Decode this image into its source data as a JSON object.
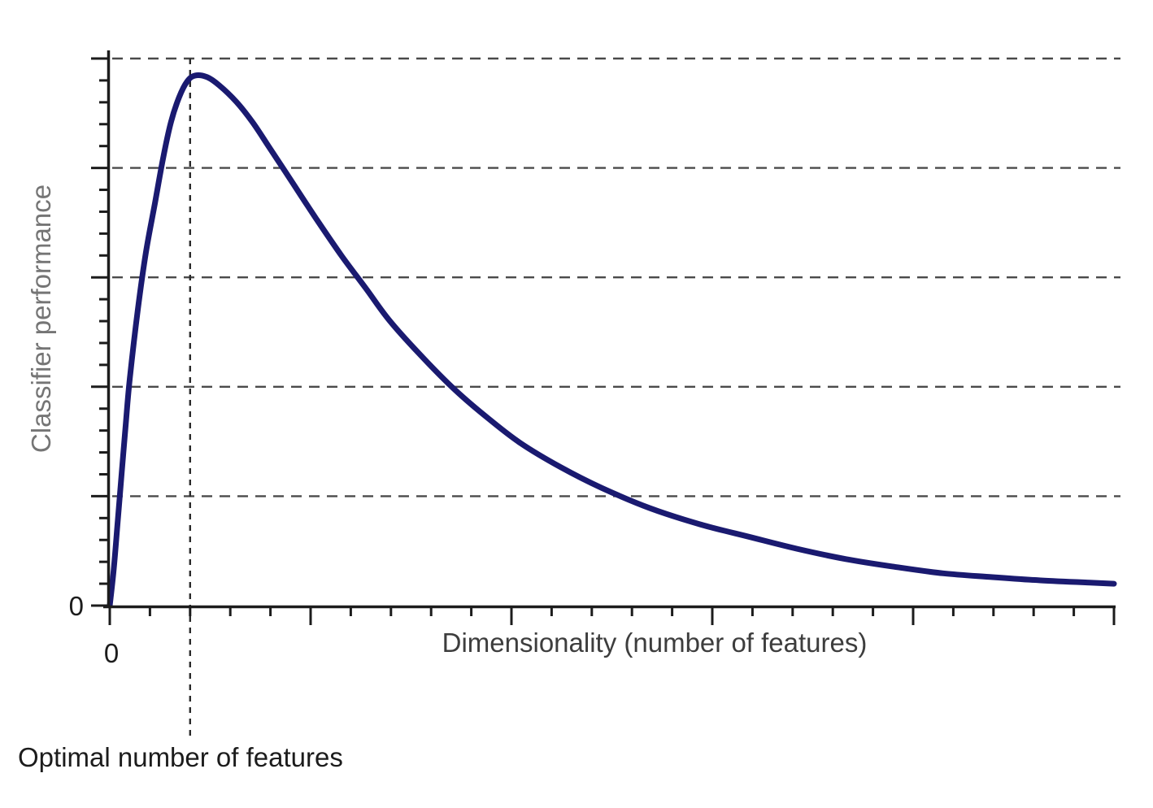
{
  "chart_data": {
    "type": "line",
    "title": "",
    "xlabel": "Dimensionality (number of features)",
    "ylabel": "Classifier performance",
    "x_origin_label": "0",
    "y_origin_label": "0",
    "annotation": "Optimal number of features",
    "optimal_x": 0.08,
    "xlim": [
      0,
      1
    ],
    "ylim": [
      0,
      1.05
    ],
    "x_axis_numeric_labels": "none (only 0 at origin)",
    "y_axis_numeric_labels": "none (only 0 at origin)",
    "gridlines_y": [
      0.2,
      0.4,
      0.6,
      0.8,
      1.0
    ],
    "grid_style": "dashed",
    "x_tick_step_major": 0.2,
    "x_tick_step_minor": 0.04,
    "y_tick_step_major": 0.2,
    "y_tick_step_minor": 0.04,
    "legend": "none",
    "series": [
      {
        "name": "Classifier performance",
        "color": "#1a1a70",
        "x": [
          0,
          0.004,
          0.008,
          0.012,
          0.016,
          0.02,
          0.028,
          0.036,
          0.045,
          0.053,
          0.061,
          0.069,
          0.077,
          0.085,
          0.097,
          0.109,
          0.126,
          0.142,
          0.158,
          0.182,
          0.206,
          0.231,
          0.255,
          0.279,
          0.312,
          0.344,
          0.377,
          0.409,
          0.449,
          0.49,
          0.538,
          0.587,
          0.636,
          0.684,
          0.733,
          0.781,
          0.83,
          0.879,
          0.927,
          0.976,
          1.0
        ],
        "y": [
          0,
          0.067,
          0.156,
          0.245,
          0.334,
          0.416,
          0.542,
          0.646,
          0.736,
          0.817,
          0.884,
          0.929,
          0.958,
          0.969,
          0.966,
          0.951,
          0.921,
          0.884,
          0.84,
          0.773,
          0.706,
          0.639,
          0.58,
          0.52,
          0.453,
          0.394,
          0.342,
          0.297,
          0.253,
          0.215,
          0.178,
          0.149,
          0.126,
          0.104,
          0.085,
          0.071,
          0.059,
          0.052,
          0.046,
          0.042,
          0.04
        ]
      }
    ]
  },
  "colors": {
    "curve": "#1a1a70",
    "axis": "#1c1c1c",
    "gridline": "#4a4a4a",
    "optimal_line": "#2b2b2b",
    "ylabel_text": "#757575",
    "xlabel_text": "#3d3d3d",
    "annotation_text": "#1c1c1c",
    "background": "#ffffff"
  }
}
